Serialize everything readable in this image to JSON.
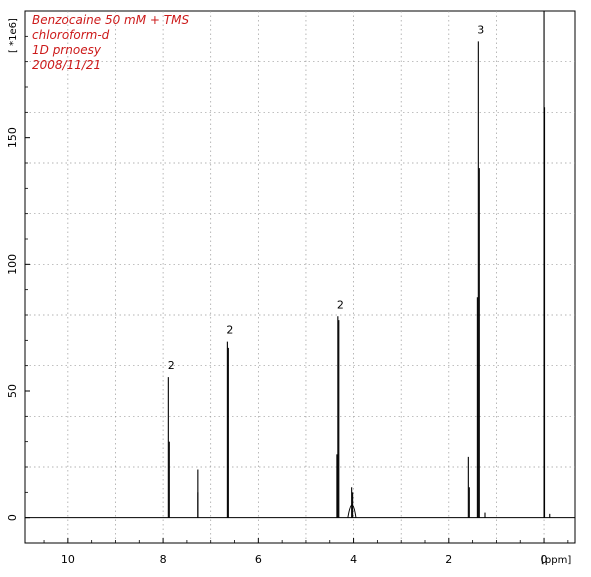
{
  "chart_data": {
    "type": "line",
    "title_lines": [
      "Benzocaine 50 mM + TMS",
      "chloroform-d",
      "1D prnoesy",
      "2008/11/21"
    ],
    "title_color": "#cc1a1a",
    "xlabel": "[ppm]",
    "ylabel": "[ *1e6]",
    "xlim": [
      10.9,
      -0.65
    ],
    "x_reversed": true,
    "ylim": [
      -10,
      200
    ],
    "x_ticks": [
      10,
      8,
      6,
      4,
      2,
      0
    ],
    "y_ticks": [
      0,
      50,
      100,
      150
    ],
    "grid": true,
    "grid_style": "dotted",
    "integrals": [
      {
        "x": 7.87,
        "label": "2"
      },
      {
        "x": 6.64,
        "label": "2"
      },
      {
        "x": 4.32,
        "label": "2"
      },
      {
        "x": 1.37,
        "label": "3"
      }
    ],
    "series": [
      {
        "peaks": [
          {
            "x": 7.89,
            "y": 55.5
          },
          {
            "x": 7.87,
            "y": 30
          },
          {
            "x": 7.27,
            "y": 19
          },
          {
            "x": 7.27,
            "y": 10
          },
          {
            "x": 6.65,
            "y": 69.5
          },
          {
            "x": 6.63,
            "y": 67
          },
          {
            "x": 4.35,
            "y": 25
          },
          {
            "x": 4.33,
            "y": 79.5
          },
          {
            "x": 4.31,
            "y": 78
          },
          {
            "x": 4.04,
            "y": 12
          },
          {
            "x": 4.02,
            "y": 10
          },
          {
            "x": 1.59,
            "y": 24
          },
          {
            "x": 1.57,
            "y": 12
          },
          {
            "x": 1.4,
            "y": 87
          },
          {
            "x": 1.38,
            "y": 188
          },
          {
            "x": 1.36,
            "y": 138
          },
          {
            "x": 1.24,
            "y": 2
          },
          {
            "x": 0.0,
            "y": 205
          },
          {
            "x": -0.01,
            "y": 162
          },
          {
            "x": -0.12,
            "y": 1.5
          }
        ]
      }
    ]
  }
}
